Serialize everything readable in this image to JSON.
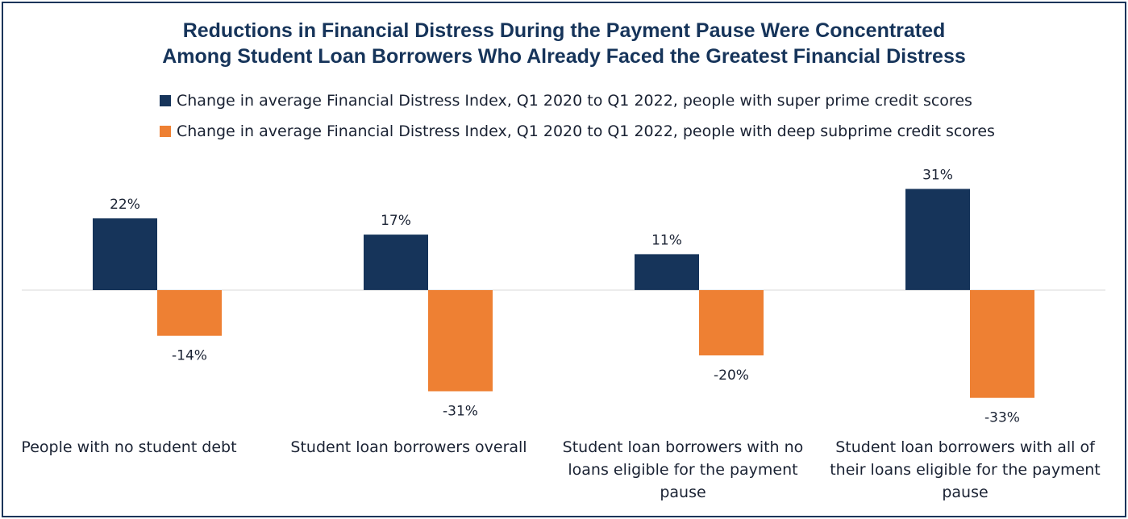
{
  "chart_data": {
    "type": "bar",
    "title": "Reductions in Financial Distress During the Payment Pause Were Concentrated Among Student Loan Borrowers Who Already Faced the Greatest Financial Distress",
    "title_lines": [
      "Reductions in Financial Distress During the Payment Pause Were Concentrated",
      "Among Student Loan Borrowers Who Already Faced the Greatest Financial Distress"
    ],
    "categories": [
      "People with no student debt",
      "Student loan borrowers overall",
      "Student loan borrowers with no loans eligible for the payment pause",
      "Student loan borrowers with all of their loans eligible for the payment pause"
    ],
    "series": [
      {
        "name": "Change in average Financial Distress Index, Q1 2020 to Q1 2022, people with super prime credit scores",
        "color": "#16345a",
        "values": [
          22,
          17,
          11,
          31
        ],
        "data_labels": [
          "22%",
          "17%",
          "11%",
          "31%"
        ]
      },
      {
        "name": "Change in average Financial Distress Index, Q1 2020 to Q1 2022, people with deep subprime credit scores",
        "color": "#ee8033",
        "values": [
          -14,
          -31,
          -20,
          -33
        ],
        "data_labels": [
          "-14%",
          "-31%",
          "-20%",
          "-33%"
        ]
      }
    ],
    "unit": "%",
    "ylim": [
      -35,
      35
    ],
    "grid": false,
    "legend_position": "top-left"
  },
  "colors": {
    "frame": "#16345a",
    "zero_line": "#d9d9d9"
  }
}
